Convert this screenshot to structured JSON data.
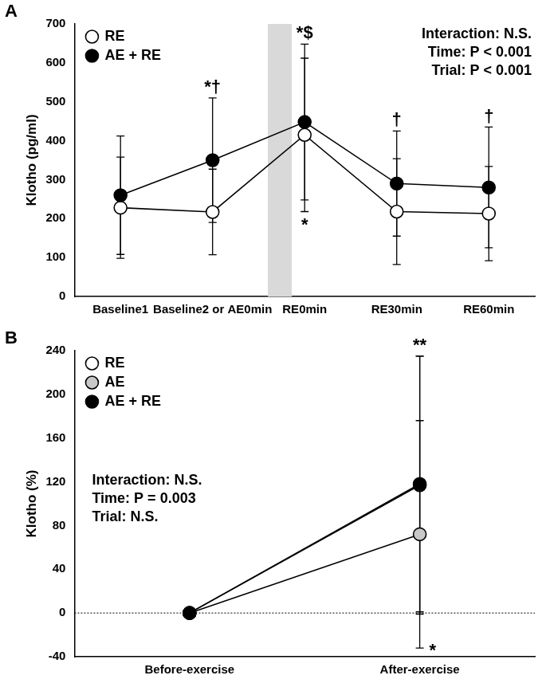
{
  "chart_data": [
    {
      "type": "line",
      "title": "A",
      "categories": [
        "Baseline1",
        "Baseline2 or AE0min",
        "RE0min",
        "RE30min",
        "RE60min"
      ],
      "y_label": "Klotho (pg/ml)",
      "ylim": [
        0,
        700
      ],
      "yticks": [
        0,
        100,
        200,
        300,
        400,
        500,
        600,
        700
      ],
      "grid": false,
      "legend": "upper left",
      "series": [
        {
          "name": "RE",
          "color": "#ffffff",
          "marker": "circle",
          "values": [
            228,
            217,
            415,
            218,
            213
          ],
          "errors": [
            130,
            110,
            197,
            136,
            121
          ]
        },
        {
          "name": "AE + RE",
          "color": "#000000",
          "marker": "circle",
          "values": [
            260,
            350,
            448,
            290,
            280
          ],
          "errors": [
            152,
            160,
            200,
            135,
            155
          ]
        }
      ],
      "stats": [
        "Interaction: N.S.",
        "Time: P < 0.001",
        "Trial: P < 0.001"
      ],
      "annotations": [
        {
          "text": "*†",
          "series": "AE + RE",
          "category": "Baseline2 or AE0min",
          "position": "above"
        },
        {
          "text": "*$",
          "series": "AE + RE",
          "category": "RE0min",
          "position": "above"
        },
        {
          "text": "*",
          "series": "RE",
          "category": "RE0min",
          "position": "below"
        },
        {
          "text": "†",
          "series": "AE + RE",
          "category": "RE30min",
          "position": "above"
        },
        {
          "text": "†",
          "series": "AE + RE",
          "category": "RE60min",
          "position": "above"
        }
      ]
    },
    {
      "type": "line",
      "title": "B",
      "categories": [
        "Before-exercise",
        "After-exercise"
      ],
      "y_label": "Klotho (%)",
      "ylim": [
        -40,
        240
      ],
      "yticks": [
        -40,
        0,
        40,
        80,
        120,
        160,
        200,
        240
      ],
      "grid": false,
      "legend": "upper left",
      "reference_line": 0,
      "series": [
        {
          "name": "RE",
          "color": "#ffffff",
          "marker": "circle",
          "values": [
            0,
            117
          ],
          "errors": [
            0,
            118
          ]
        },
        {
          "name": "AE",
          "color": "#c8c8c8",
          "marker": "circle",
          "values": [
            0,
            72
          ],
          "errors": [
            0,
            104
          ]
        },
        {
          "name": "AE + RE",
          "color": "#000000",
          "marker": "circle",
          "values": [
            0,
            118
          ],
          "errors": [
            0,
            117
          ]
        }
      ],
      "stats": [
        "Interaction: N.S.",
        "Time: P = 0.003",
        "Trial: N.S."
      ],
      "annotations": [
        {
          "text": "**",
          "series": "AE + RE",
          "category": "After-exercise",
          "position": "above"
        },
        {
          "text": "*",
          "series": "AE",
          "category": "After-exercise",
          "position": "lower right"
        }
      ]
    }
  ]
}
